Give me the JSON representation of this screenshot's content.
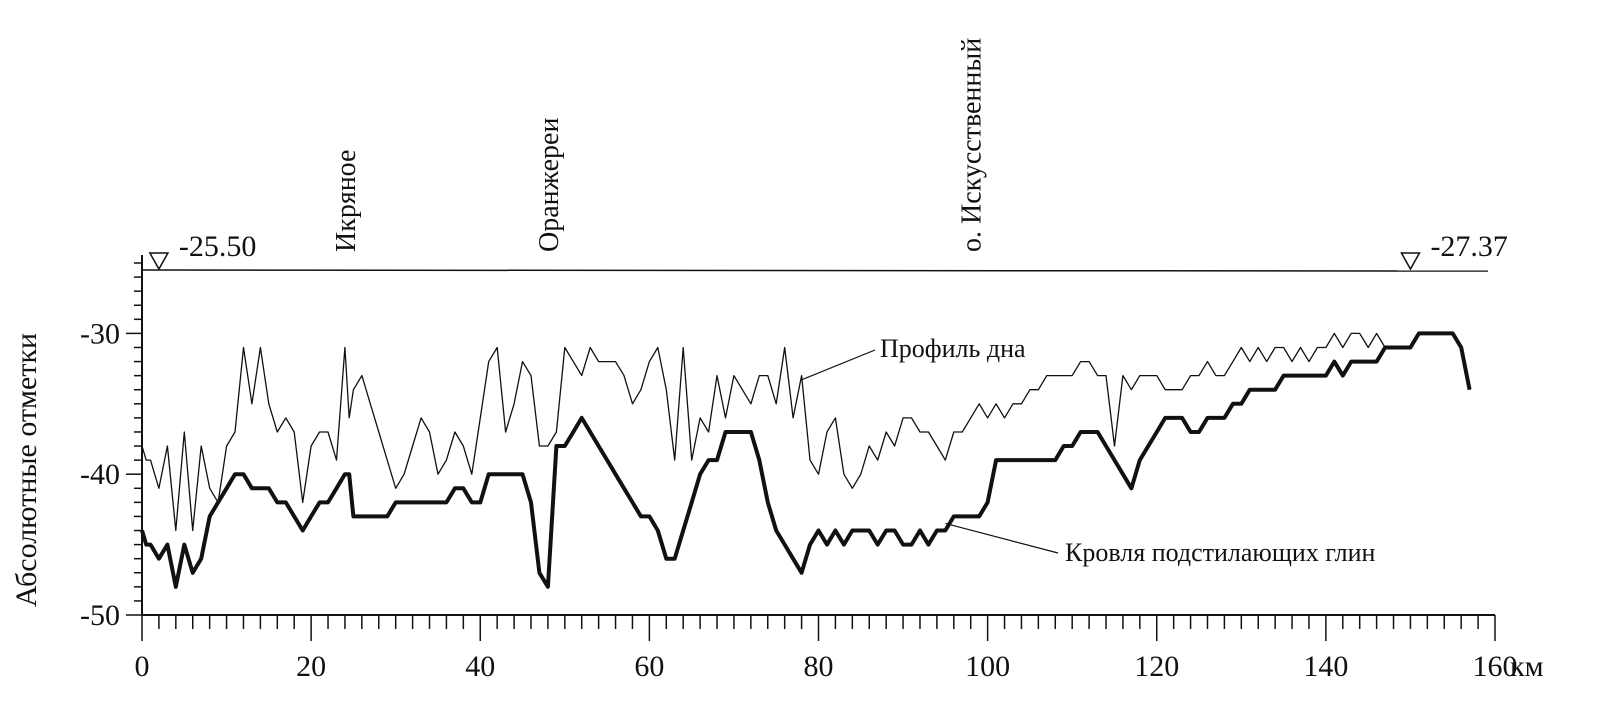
{
  "chart_data": {
    "type": "line",
    "ylabel": "Абсолютные отметки",
    "x_unit": "км",
    "xlim": [
      0,
      160
    ],
    "ylim": [
      -50,
      -25
    ],
    "x_ticks": [
      0,
      20,
      40,
      60,
      80,
      100,
      120,
      140,
      160
    ],
    "y_ticks": [
      -30,
      -40,
      -50
    ],
    "water_level": {
      "y": -25.5,
      "markers": [
        {
          "x": 2,
          "label": "-25.50"
        },
        {
          "x": 150,
          "label": "-27.37"
        }
      ]
    },
    "place_labels": [
      {
        "x": 24,
        "label": "Икряное"
      },
      {
        "x": 48,
        "label": "Оранжереи"
      },
      {
        "x": 98,
        "label": "о. Искусственный"
      }
    ],
    "annotations": [
      {
        "text": "Профиль дна",
        "series": "profile",
        "x": 78,
        "y": -33.3
      },
      {
        "text": "Кровля подстилающих глин",
        "series": "clay",
        "x": 95,
        "y": -43.5
      }
    ],
    "series": [
      {
        "name": "Профиль дна",
        "key": "profile",
        "x": [
          0,
          0.5,
          1,
          2,
          3,
          4,
          5,
          6,
          7,
          8,
          9,
          10,
          11,
          12,
          13,
          14,
          15,
          16,
          17,
          18,
          19,
          20,
          21,
          22,
          23,
          24,
          24.5,
          25,
          26,
          27,
          28,
          29,
          30,
          31,
          32,
          33,
          34,
          35,
          36,
          37,
          38,
          39,
          40,
          41,
          42,
          43,
          44,
          45,
          46,
          47,
          48,
          49,
          50,
          51,
          52,
          53,
          54,
          55,
          56,
          57,
          58,
          59,
          60,
          61,
          62,
          63,
          64,
          65,
          66,
          67,
          68,
          69,
          70,
          71,
          72,
          73,
          74,
          75,
          76,
          77,
          78,
          79,
          80,
          81,
          82,
          83,
          84,
          85,
          86,
          87,
          88,
          89,
          90,
          91,
          92,
          93,
          94,
          95,
          96,
          97,
          98,
          99,
          100,
          101,
          102,
          103,
          104,
          105,
          106,
          107,
          108,
          109,
          110,
          111,
          112,
          113,
          114,
          115,
          116,
          117,
          118,
          119,
          120,
          121,
          122,
          123,
          124,
          125,
          126,
          127,
          128,
          129,
          130,
          131,
          132,
          133,
          134,
          135,
          136,
          137,
          138,
          139,
          140,
          141,
          142,
          143,
          144,
          145,
          146,
          147,
          148,
          149,
          150,
          151,
          152,
          153,
          154,
          155,
          156,
          157
        ],
        "values": [
          -38,
          -39,
          -39,
          -41,
          -38,
          -44,
          -37,
          -44,
          -38,
          -41,
          -42,
          -38,
          -37,
          -31,
          -35,
          -31,
          -35,
          -37,
          -36,
          -37,
          -42,
          -38,
          -37,
          -37,
          -39,
          -31,
          -36,
          -34,
          -33,
          -35,
          -37,
          -39,
          -41,
          -40,
          -38,
          -36,
          -37,
          -40,
          -39,
          -37,
          -38,
          -40,
          -36,
          -32,
          -31,
          -37,
          -35,
          -32,
          -33,
          -38,
          -38,
          -37,
          -31,
          -32,
          -33,
          -31,
          -32,
          -32,
          -32,
          -33,
          -35,
          -34,
          -32,
          -31,
          -34,
          -39,
          -31,
          -39,
          -36,
          -37,
          -33,
          -36,
          -33,
          -34,
          -35,
          -33,
          -33,
          -35,
          -31,
          -36,
          -33,
          -39,
          -40,
          -37,
          -36,
          -40,
          -41,
          -40,
          -38,
          -39,
          -37,
          -38,
          -36,
          -36,
          -37,
          -37,
          -38,
          -39,
          -37,
          -37,
          -36,
          -35,
          -36,
          -35,
          -36,
          -35,
          -35,
          -34,
          -34,
          -33,
          -33,
          -33,
          -33,
          -32,
          -32,
          -33,
          -33,
          -38,
          -33,
          -34,
          -33,
          -33,
          -33,
          -34,
          -34,
          -34,
          -33,
          -33,
          -32,
          -33,
          -33,
          -32,
          -31,
          -32,
          -31,
          -32,
          -31,
          -31,
          -32,
          -31,
          -32,
          -31,
          -31,
          -30,
          -31,
          -30,
          -30,
          -31,
          -30,
          -31,
          -31,
          -31,
          -31,
          -30,
          -30,
          -30,
          -30,
          -30,
          -31,
          -34
        ]
      },
      {
        "name": "Кровля подстилающих глин",
        "key": "clay",
        "x": [
          0,
          0.5,
          1,
          2,
          3,
          4,
          5,
          6,
          7,
          8,
          9,
          10,
          11,
          12,
          13,
          14,
          15,
          16,
          17,
          18,
          19,
          20,
          21,
          22,
          23,
          24,
          24.5,
          25,
          26,
          27,
          28,
          29,
          30,
          31,
          32,
          33,
          34,
          35,
          36,
          37,
          38,
          39,
          40,
          41,
          42,
          43,
          44,
          45,
          46,
          47,
          48,
          49,
          50,
          51,
          52,
          53,
          54,
          55,
          56,
          57,
          58,
          59,
          60,
          61,
          62,
          63,
          64,
          65,
          66,
          67,
          68,
          69,
          70,
          71,
          72,
          73,
          74,
          75,
          76,
          77,
          78,
          79,
          80,
          81,
          82,
          83,
          84,
          85,
          86,
          87,
          88,
          89,
          90,
          91,
          92,
          93,
          94,
          95,
          96,
          97,
          98,
          99,
          100,
          101,
          102,
          103,
          104,
          105,
          106,
          107,
          108,
          109,
          110,
          111,
          112,
          113,
          114,
          115,
          116,
          117,
          118,
          119,
          120,
          121,
          122,
          123,
          124,
          125,
          126,
          127,
          128,
          129,
          130,
          131,
          132,
          133,
          134,
          135,
          136,
          137,
          138,
          139,
          140,
          141,
          142,
          143,
          144,
          145,
          146,
          147,
          148,
          149,
          150,
          151,
          152,
          153,
          154,
          155,
          156,
          157
        ],
        "values": [
          -44,
          -45,
          -45,
          -46,
          -45,
          -48,
          -45,
          -47,
          -46,
          -43,
          -42,
          -41,
          -40,
          -40,
          -41,
          -41,
          -41,
          -42,
          -42,
          -43,
          -44,
          -43,
          -42,
          -42,
          -41,
          -40,
          -40,
          -43,
          -43,
          -43,
          -43,
          -43,
          -42,
          -42,
          -42,
          -42,
          -42,
          -42,
          -42,
          -41,
          -41,
          -42,
          -42,
          -40,
          -40,
          -40,
          -40,
          -40,
          -42,
          -47,
          -48,
          -38,
          -38,
          -37,
          -36,
          -37,
          -38,
          -39,
          -40,
          -41,
          -42,
          -43,
          -43,
          -44,
          -46,
          -46,
          -44,
          -42,
          -40,
          -39,
          -39,
          -37,
          -37,
          -37,
          -37,
          -39,
          -42,
          -44,
          -45,
          -46,
          -47,
          -45,
          -44,
          -45,
          -44,
          -45,
          -44,
          -44,
          -44,
          -45,
          -44,
          -44,
          -45,
          -45,
          -44,
          -45,
          -44,
          -44,
          -43,
          -43,
          -43,
          -43,
          -42,
          -39,
          -39,
          -39,
          -39,
          -39,
          -39,
          -39,
          -39,
          -38,
          -38,
          -37,
          -37,
          -37,
          -38,
          -39,
          -40,
          -41,
          -39,
          -38,
          -37,
          -36,
          -36,
          -36,
          -37,
          -37,
          -36,
          -36,
          -36,
          -35,
          -35,
          -34,
          -34,
          -34,
          -34,
          -33,
          -33,
          -33,
          -33,
          -33,
          -33,
          -32,
          -33,
          -32,
          -32,
          -32,
          -32,
          -31,
          -31,
          -31,
          -31,
          -30,
          -30,
          -30,
          -30,
          -30,
          -31,
          -34
        ]
      }
    ]
  }
}
